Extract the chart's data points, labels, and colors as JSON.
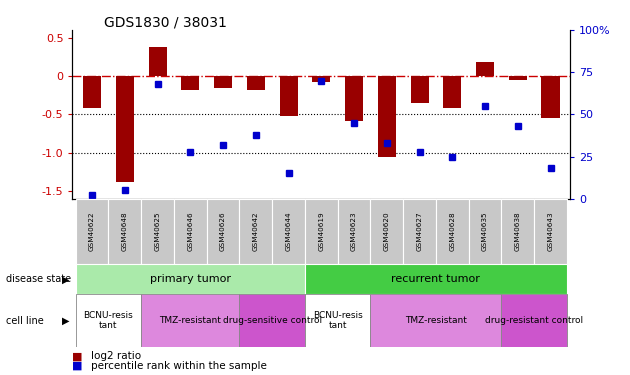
{
  "title": "GDS1830 / 38031",
  "samples": [
    "GSM40622",
    "GSM40648",
    "GSM40625",
    "GSM40646",
    "GSM40626",
    "GSM40642",
    "GSM40644",
    "GSM40619",
    "GSM40623",
    "GSM40620",
    "GSM40627",
    "GSM40628",
    "GSM40635",
    "GSM40638",
    "GSM40643"
  ],
  "log2_ratio": [
    -0.42,
    -1.38,
    0.38,
    -0.18,
    -0.15,
    -0.18,
    -0.52,
    -0.08,
    -0.58,
    -1.05,
    -0.35,
    -0.42,
    0.18,
    -0.05,
    -0.55
  ],
  "percentile_rank": [
    2,
    5,
    68,
    28,
    32,
    38,
    15,
    70,
    45,
    33,
    28,
    25,
    55,
    43,
    18
  ],
  "ylim_left": [
    -1.6,
    0.6
  ],
  "ylim_right": [
    0,
    100
  ],
  "bar_color": "#990000",
  "dot_color": "#0000cc",
  "ds_groups": [
    {
      "label": "primary tumor",
      "start": 0,
      "end": 6,
      "color": "#aaeaaa"
    },
    {
      "label": "recurrent tumor",
      "start": 7,
      "end": 14,
      "color": "#44cc44"
    }
  ],
  "cl_groups": [
    {
      "label": "BCNU-resis\ntant",
      "span": [
        0,
        1
      ],
      "color": "#ffffff"
    },
    {
      "label": "TMZ-resistant",
      "span": [
        2,
        4
      ],
      "color": "#dd88dd"
    },
    {
      "label": "drug-sensitive control",
      "span": [
        5,
        6
      ],
      "color": "#cc55cc"
    },
    {
      "label": "BCNU-resis\ntant",
      "span": [
        7,
        8
      ],
      "color": "#ffffff"
    },
    {
      "label": "TMZ-resistant",
      "span": [
        9,
        12
      ],
      "color": "#dd88dd"
    },
    {
      "label": "drug-resistant control",
      "span": [
        13,
        14
      ],
      "color": "#cc55cc"
    }
  ],
  "legend_labels": [
    "log2 ratio",
    "percentile rank within the sample"
  ],
  "legend_colors": [
    "#990000",
    "#0000cc"
  ],
  "yticks_left": [
    -1.5,
    -1.0,
    -0.5,
    0,
    0.5
  ],
  "yticks_right": [
    0,
    25,
    50,
    75,
    100
  ]
}
